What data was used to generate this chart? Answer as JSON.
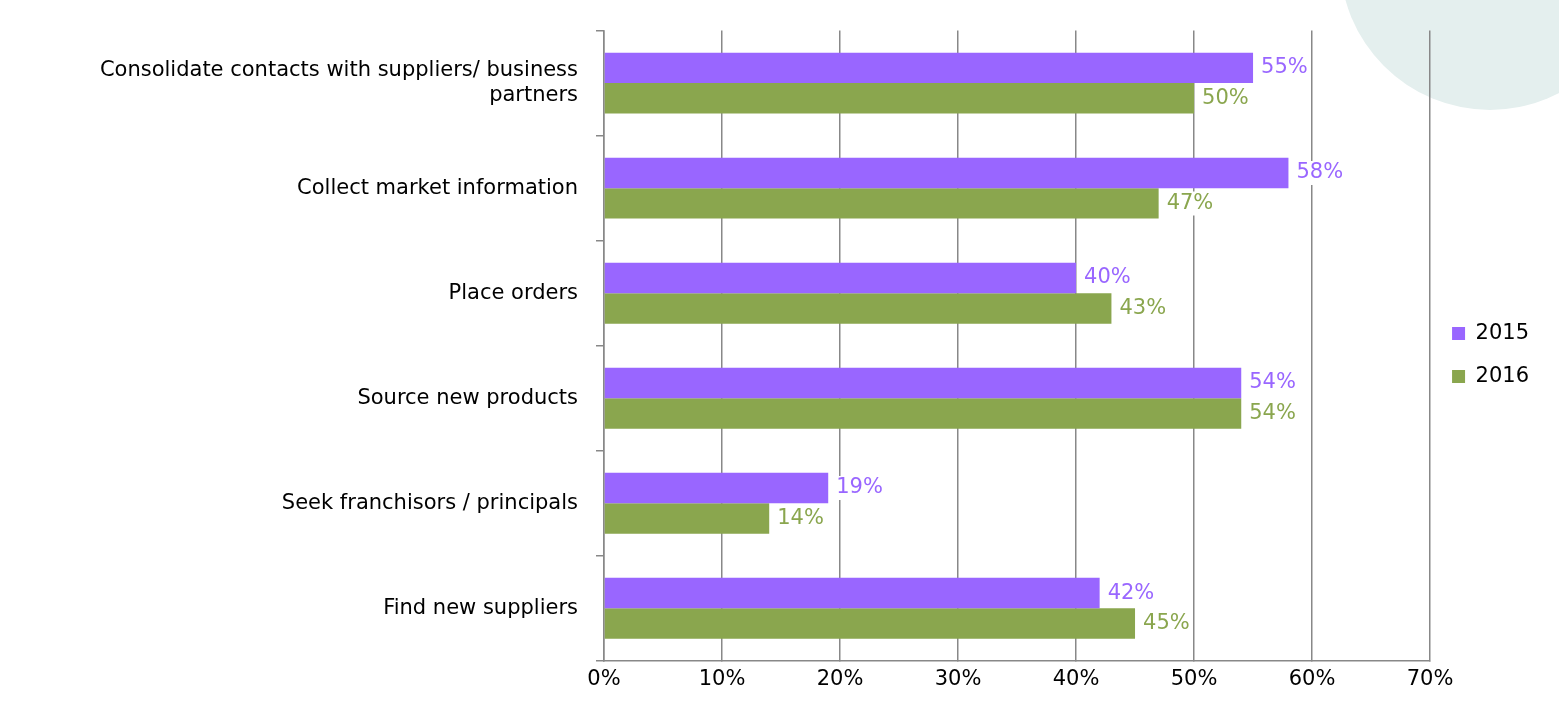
{
  "chart_data": {
    "type": "bar",
    "orientation": "horizontal",
    "categories": [
      "Consolidate contacts with suppliers/ business partners",
      "Collect market information",
      "Place orders",
      "Source new products",
      "Seek franchisors / principals",
      "Find new suppliers"
    ],
    "series": [
      {
        "name": "2015",
        "color": "#9966ff",
        "values": [
          55,
          58,
          40,
          54,
          19,
          42
        ],
        "value_labels": [
          "55%",
          "58%",
          "40%",
          "54%",
          "19%",
          "42%"
        ]
      },
      {
        "name": "2016",
        "color": "#8aa64e",
        "values": [
          50,
          47,
          43,
          54,
          14,
          45
        ],
        "value_labels": [
          "50%",
          "47%",
          "43%",
          "54%",
          "14%",
          "45%"
        ]
      }
    ],
    "xlim": [
      0,
      70
    ],
    "xticks": [
      {
        "value": 0,
        "label": "0%"
      },
      {
        "value": 10,
        "label": "10%"
      },
      {
        "value": 20,
        "label": "20%"
      },
      {
        "value": 30,
        "label": "30%"
      },
      {
        "value": 40,
        "label": "40%"
      },
      {
        "value": 50,
        "label": "50%"
      },
      {
        "value": 60,
        "label": "60%"
      },
      {
        "value": 70,
        "label": "70%"
      }
    ],
    "grid": "x",
    "legend": "right"
  }
}
